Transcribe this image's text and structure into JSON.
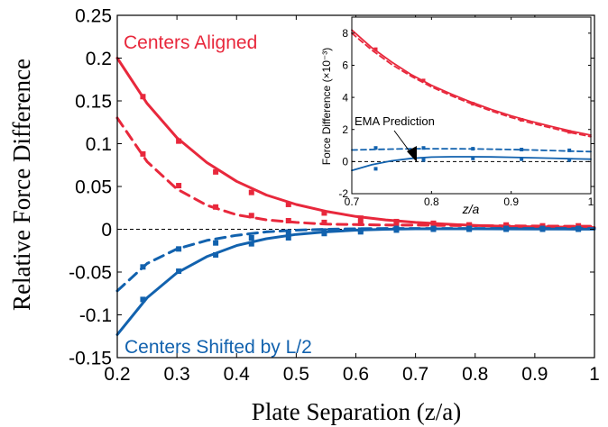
{
  "chart_data": [
    {
      "type": "line",
      "xlabel": "Plate Separation (z/a)",
      "ylabel": "Relative Force Difference",
      "xlim": [
        0.2,
        1.0
      ],
      "ylim": [
        -0.15,
        0.25
      ],
      "xticks": [
        "0.2",
        "0.3",
        "0.4",
        "0.5",
        "0.6",
        "0.7",
        "0.8",
        "0.9",
        "1"
      ],
      "yticks": [
        "-0.15",
        "-0.1",
        "-0.05",
        "0",
        "0.05",
        "0.1",
        "0.15",
        "0.2",
        "0.25"
      ],
      "reference_line_y": 0,
      "annotations": [
        "Centers Aligned",
        "Centers Shifted by L/2"
      ],
      "colors": {
        "aligned": "#e8283c",
        "shifted": "#1262ae",
        "reference": "#000000"
      },
      "series": [
        {
          "group": "aligned",
          "style": "solid",
          "x": [
            0.2,
            0.25,
            0.3,
            0.35,
            0.4,
            0.45,
            0.5,
            0.55,
            0.6,
            0.65,
            0.7,
            0.75,
            0.8,
            0.85,
            0.9,
            0.95,
            1.0
          ],
          "y": [
            0.2,
            0.147,
            0.107,
            0.078,
            0.056,
            0.04,
            0.029,
            0.021,
            0.015,
            0.011,
            0.008,
            0.006,
            0.0045,
            0.0035,
            0.003,
            0.0025,
            0.002
          ]
        },
        {
          "group": "aligned",
          "style": "markers",
          "x": [
            0.243,
            0.303,
            0.365,
            0.425,
            0.487,
            0.547,
            0.608,
            0.668,
            0.73,
            0.79,
            0.852,
            0.913,
            0.973
          ],
          "y": [
            0.155,
            0.103,
            0.067,
            0.043,
            0.029,
            0.019,
            0.013,
            0.009,
            0.007,
            0.005,
            0.004,
            0.003,
            0.002
          ]
        },
        {
          "group": "aligned",
          "style": "dashed",
          "x": [
            0.2,
            0.25,
            0.3,
            0.35,
            0.4,
            0.45,
            0.5,
            0.55,
            0.6,
            0.65,
            0.7,
            0.75,
            0.8,
            0.85,
            0.9,
            0.95,
            1.0
          ],
          "y": [
            0.13,
            0.079,
            0.047,
            0.028,
            0.017,
            0.011,
            0.008,
            0.006,
            0.0055,
            0.005,
            0.0048,
            0.0045,
            0.0042,
            0.004,
            0.0038,
            0.0036,
            0.0035
          ]
        },
        {
          "group": "aligned",
          "style": "markers",
          "x": [
            0.243,
            0.303,
            0.365,
            0.425,
            0.487,
            0.547,
            0.608,
            0.668,
            0.73,
            0.79,
            0.852,
            0.913,
            0.973
          ],
          "y": [
            0.088,
            0.051,
            0.026,
            0.016,
            0.01,
            0.008,
            0.007,
            0.006,
            0.006,
            0.005,
            0.005,
            0.004,
            0.004
          ]
        },
        {
          "group": "shifted",
          "style": "solid",
          "x": [
            0.2,
            0.25,
            0.3,
            0.35,
            0.4,
            0.45,
            0.5,
            0.55,
            0.6,
            0.65,
            0.7,
            0.75,
            0.8,
            0.85,
            0.9,
            0.95,
            1.0
          ],
          "y": [
            -0.123,
            -0.08,
            -0.051,
            -0.032,
            -0.019,
            -0.011,
            -0.006,
            -0.003,
            -0.001,
            0.0,
            0.0005,
            0.0005,
            0.0005,
            0.0004,
            0.0003,
            0.0002,
            0.0001
          ]
        },
        {
          "group": "shifted",
          "style": "markers",
          "x": [
            0.243,
            0.303,
            0.365,
            0.425,
            0.487,
            0.547,
            0.608,
            0.668,
            0.73,
            0.79,
            0.852,
            0.913,
            0.973
          ],
          "y": [
            -0.082,
            -0.049,
            -0.03,
            -0.017,
            -0.01,
            -0.005,
            -0.003,
            -0.001,
            0.0,
            0.0,
            0.0,
            0.0,
            0.0
          ]
        },
        {
          "group": "shifted",
          "style": "dashed",
          "x": [
            0.2,
            0.25,
            0.3,
            0.35,
            0.4,
            0.45,
            0.5,
            0.55,
            0.6,
            0.65,
            0.7,
            0.75,
            0.8,
            0.85,
            0.9,
            0.95,
            1.0
          ],
          "y": [
            -0.072,
            -0.04,
            -0.023,
            -0.013,
            -0.007,
            -0.003,
            -0.001,
            0.0,
            0.0005,
            0.001,
            0.001,
            0.001,
            0.001,
            0.001,
            0.001,
            0.001,
            0.001
          ]
        },
        {
          "group": "shifted",
          "style": "markers",
          "x": [
            0.243,
            0.303,
            0.365,
            0.425,
            0.487,
            0.547,
            0.608,
            0.668,
            0.73,
            0.79,
            0.852,
            0.913,
            0.973
          ],
          "y": [
            -0.044,
            -0.023,
            -0.016,
            -0.01,
            -0.005,
            -0.002,
            -0.001,
            0.001,
            0.001,
            0.001,
            0.001,
            0.001,
            0.001
          ]
        }
      ]
    },
    {
      "type": "line",
      "xlabel": "z/a",
      "ylabel": "Force Difference (×10⁻³)",
      "xlim": [
        0.7,
        1.0
      ],
      "ylim": [
        -2,
        9
      ],
      "xticks": [
        "0.7",
        "0.8",
        "0.9",
        "1"
      ],
      "yticks": [
        "-2",
        "0",
        "2",
        "4",
        "6",
        "8"
      ],
      "reference_line_y": 0,
      "annotations": [
        "EMA Prediction"
      ],
      "colors": {
        "aligned": "#e8283c",
        "shifted": "#1262ae",
        "reference": "#000000"
      },
      "series": [
        {
          "group": "aligned",
          "style": "solid",
          "x": [
            0.7,
            0.725,
            0.75,
            0.775,
            0.8,
            0.825,
            0.85,
            0.875,
            0.9,
            0.925,
            0.95,
            0.975,
            1.0
          ],
          "y": [
            8.2,
            7.1,
            6.2,
            5.4,
            4.75,
            4.2,
            3.7,
            3.25,
            2.85,
            2.5,
            2.2,
            1.9,
            1.65
          ]
        },
        {
          "group": "aligned",
          "style": "dashed",
          "x": [
            0.7,
            0.725,
            0.75,
            0.775,
            0.8,
            0.825,
            0.85,
            0.875,
            0.9,
            0.925,
            0.95,
            0.975,
            1.0
          ],
          "y": [
            8.0,
            6.95,
            6.05,
            5.3,
            4.65,
            4.1,
            3.6,
            3.15,
            2.75,
            2.4,
            2.1,
            1.8,
            1.55
          ]
        },
        {
          "group": "aligned",
          "style": "markers",
          "x": [
            0.73,
            0.79,
            0.852,
            0.913,
            0.973
          ],
          "y": [
            7.0,
            5.05,
            3.6,
            2.6,
            1.85
          ]
        },
        {
          "group": "shifted",
          "style": "dashed",
          "x": [
            0.7,
            0.725,
            0.75,
            0.775,
            0.8,
            0.825,
            0.85,
            0.875,
            0.9,
            0.925,
            0.95,
            0.975,
            1.0
          ],
          "y": [
            0.72,
            0.75,
            0.78,
            0.8,
            0.8,
            0.8,
            0.79,
            0.77,
            0.75,
            0.72,
            0.69,
            0.65,
            0.62
          ]
        },
        {
          "group": "shifted",
          "style": "markers",
          "x": [
            0.73,
            0.79,
            0.852,
            0.913,
            0.973
          ],
          "y": [
            0.85,
            0.85,
            0.8,
            0.75,
            0.7
          ]
        },
        {
          "group": "shifted",
          "style": "solid",
          "x": [
            0.7,
            0.725,
            0.75,
            0.775,
            0.8,
            0.825,
            0.85,
            0.875,
            0.9,
            0.925,
            0.95,
            0.975,
            1.0
          ],
          "y": [
            -0.55,
            -0.2,
            0.05,
            0.2,
            0.28,
            0.3,
            0.3,
            0.29,
            0.27,
            0.24,
            0.21,
            0.18,
            0.15
          ]
        },
        {
          "group": "shifted",
          "style": "markers",
          "x": [
            0.73,
            0.79,
            0.852,
            0.913,
            0.973
          ],
          "y": [
            -0.45,
            0.1,
            0.2,
            0.15,
            0.1
          ]
        }
      ]
    }
  ]
}
